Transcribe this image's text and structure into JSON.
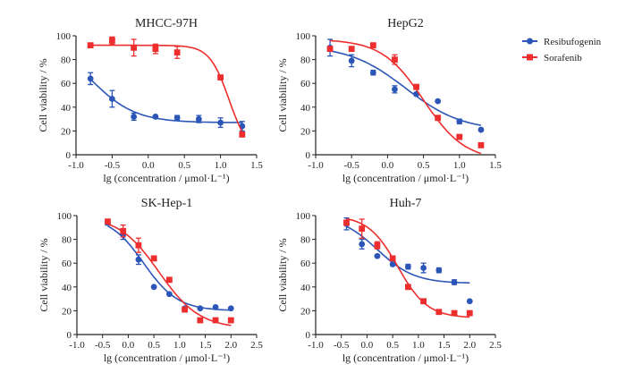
{
  "legend": {
    "items": [
      {
        "label": "Resibufogenin",
        "color": "#2b56b8",
        "marker": "circle"
      },
      {
        "label": "Sorafenib",
        "color": "#ee2e2e",
        "marker": "square"
      }
    ],
    "placement": "right"
  },
  "chart_data": [
    {
      "type": "scatter",
      "title": "MHCC-97H",
      "xlabel": "lg (concentration / μmol·L⁻¹)",
      "ylabel": "Cell viability / %",
      "xlim": [
        -1.0,
        1.5
      ],
      "ylim": [
        0,
        100
      ],
      "xticks": [
        "-1.0",
        "-0.5",
        "0.0",
        "0.5",
        "1.0",
        "1.5"
      ],
      "yticks": [
        "0",
        "20",
        "40",
        "60",
        "80",
        "100"
      ],
      "grid": false,
      "series": [
        {
          "name": "Resibufogenin",
          "x": [
            -0.8,
            -0.5,
            -0.2,
            0.1,
            0.4,
            0.7,
            1.0,
            1.3
          ],
          "y": [
            64,
            47,
            32,
            32,
            31,
            30,
            27,
            24
          ],
          "err": [
            5,
            7,
            3,
            1,
            2,
            3,
            4,
            4
          ],
          "fit": {
            "top": 100,
            "bottom": 27,
            "logIC50": -0.8,
            "hill": 1.4
          }
        },
        {
          "name": "Sorafenib",
          "x": [
            -0.8,
            -0.5,
            -0.2,
            0.1,
            0.4,
            1.0,
            1.3
          ],
          "y": [
            92,
            96,
            90,
            89,
            86,
            65,
            17
          ],
          "err": [
            1,
            3,
            7,
            4,
            5,
            1,
            1
          ],
          "fit": {
            "top": 92,
            "bottom": 0,
            "logIC50": 1.12,
            "hill": 3.2
          }
        }
      ]
    },
    {
      "type": "scatter",
      "title": "HepG2",
      "xlabel": "lg (concentration / μmol·L⁻¹)",
      "ylabel": "Cell viability / %",
      "xlim": [
        -1.0,
        1.5
      ],
      "ylim": [
        0,
        100
      ],
      "xticks": [
        "-1.0",
        "-0.5",
        "0.0",
        "0.5",
        "1.0",
        "1.5"
      ],
      "yticks": [
        "0",
        "20",
        "40",
        "60",
        "80",
        "100"
      ],
      "grid": false,
      "series": [
        {
          "name": "Resibufogenin",
          "x": [
            -0.8,
            -0.5,
            -0.2,
            0.1,
            0.4,
            0.7,
            1.0,
            1.3
          ],
          "y": [
            90,
            79,
            69,
            55,
            51,
            45,
            28,
            21
          ],
          "err": [
            7,
            5,
            2,
            3,
            1,
            0,
            2,
            0
          ],
          "fit": {
            "top": 92,
            "bottom": 20,
            "logIC50": 0.25,
            "hill": 1.1
          }
        },
        {
          "name": "Sorafenib",
          "x": [
            -0.8,
            -0.5,
            -0.2,
            0.1,
            0.4,
            0.7,
            1.0,
            1.3
          ],
          "y": [
            89,
            89,
            92,
            80,
            57,
            31,
            15,
            8
          ],
          "err": [
            2,
            1,
            1,
            4,
            2,
            2,
            0,
            0
          ],
          "fit": {
            "top": 97,
            "bottom": -5,
            "logIC50": 0.5,
            "hill": 1.5
          }
        }
      ]
    },
    {
      "type": "scatter",
      "title": "SK-Hep-1",
      "xlabel": "lg (concentration / μmol·L⁻¹)",
      "ylabel": "Cell viability / %",
      "xlim": [
        -1.0,
        2.5
      ],
      "ylim": [
        0,
        100
      ],
      "xticks": [
        "-1.0",
        "-0.5",
        "0.0",
        "0.5",
        "1.0",
        "1.5",
        "2.0",
        "2.5"
      ],
      "yticks": [
        "0",
        "20",
        "40",
        "60",
        "80",
        "100"
      ],
      "grid": false,
      "series": [
        {
          "name": "Resibufogenin",
          "x": [
            -0.4,
            -0.1,
            0.2,
            0.5,
            0.8,
            1.1,
            1.4,
            1.7,
            2.0
          ],
          "y": [
            94,
            84,
            63,
            40,
            34,
            22,
            22,
            23,
            22
          ],
          "err": [
            2,
            4,
            4,
            0,
            0,
            1,
            0,
            0,
            0
          ],
          "fit": {
            "top": 100,
            "bottom": 20,
            "logIC50": 0.3,
            "hill": 1.3
          }
        },
        {
          "name": "Sorafenib",
          "x": [
            -0.4,
            -0.1,
            0.2,
            0.5,
            0.8,
            1.1,
            1.4,
            1.7,
            2.0
          ],
          "y": [
            95,
            87,
            75,
            64,
            46,
            21,
            12,
            12,
            12
          ],
          "err": [
            0,
            5,
            6,
            0,
            0,
            0,
            0,
            0,
            0
          ],
          "fit": {
            "top": 100,
            "bottom": 5,
            "logIC50": 0.6,
            "hill": 1.1
          }
        }
      ]
    },
    {
      "type": "scatter",
      "title": "Huh-7",
      "xlabel": "lg (concentration / μmol·L⁻¹)",
      "ylabel": "Cell viability / %",
      "xlim": [
        -1.0,
        2.5
      ],
      "ylim": [
        0,
        100
      ],
      "xticks": [
        "-1.0",
        "-0.5",
        "0.0",
        "0.5",
        "1.0",
        "1.5",
        "2.0",
        "2.5"
      ],
      "yticks": [
        "0",
        "20",
        "40",
        "60",
        "80",
        "100"
      ],
      "grid": false,
      "series": [
        {
          "name": "Resibufogenin",
          "x": [
            -0.4,
            -0.1,
            0.2,
            0.5,
            0.8,
            1.1,
            1.4,
            1.7,
            2.0
          ],
          "y": [
            93,
            76,
            66,
            59,
            57,
            56,
            54,
            44,
            28
          ],
          "err": [
            5,
            4,
            1,
            1,
            2,
            4,
            2,
            2,
            0
          ],
          "fit": {
            "top": 100,
            "bottom": 43,
            "logIC50": 0.2,
            "hill": 1.2
          }
        },
        {
          "name": "Sorafenib",
          "x": [
            -0.4,
            -0.1,
            0.2,
            0.5,
            0.8,
            1.1,
            1.4,
            1.7,
            2.0
          ],
          "y": [
            94,
            89,
            75,
            64,
            40,
            28,
            19,
            18,
            18
          ],
          "err": [
            2,
            8,
            3,
            0,
            0,
            0,
            0,
            0,
            0
          ],
          "fit": {
            "top": 100,
            "bottom": 14,
            "logIC50": 0.6,
            "hill": 1.5
          }
        }
      ]
    }
  ]
}
